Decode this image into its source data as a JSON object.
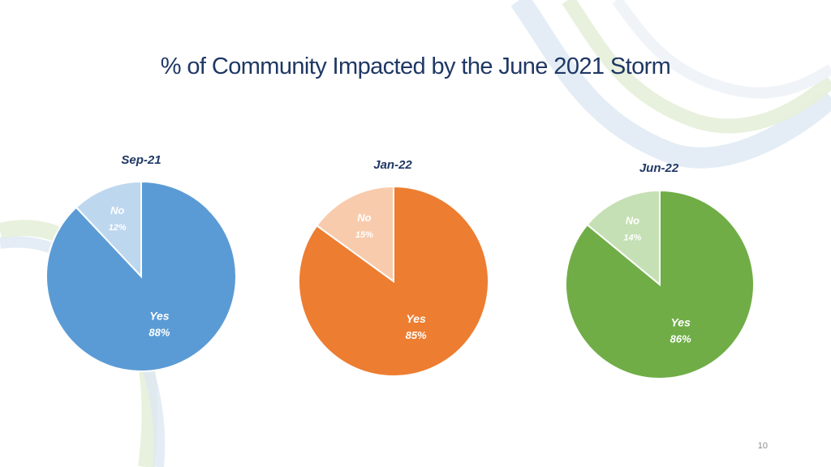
{
  "slide": {
    "title": "% of Community Impacted by the June 2021 Storm",
    "page_number": "10"
  },
  "chart_data": [
    {
      "type": "pie",
      "title": "Sep-21",
      "categories": [
        "Yes",
        "No"
      ],
      "values": [
        88,
        12
      ],
      "value_labels": [
        "88%",
        "12%"
      ],
      "colors": [
        "#5b9bd5",
        "#bdd7ee"
      ]
    },
    {
      "type": "pie",
      "title": "Jan-22",
      "categories": [
        "Yes",
        "No"
      ],
      "values": [
        85,
        15
      ],
      "value_labels": [
        "85%",
        "15%"
      ],
      "colors": [
        "#ed7d31",
        "#f8cbad"
      ]
    },
    {
      "type": "pie",
      "title": "Jun-22",
      "categories": [
        "Yes",
        "No"
      ],
      "values": [
        86,
        14
      ],
      "value_labels": [
        "86%",
        "14%"
      ],
      "colors": [
        "#70ad47",
        "#c5e0b4"
      ]
    }
  ]
}
